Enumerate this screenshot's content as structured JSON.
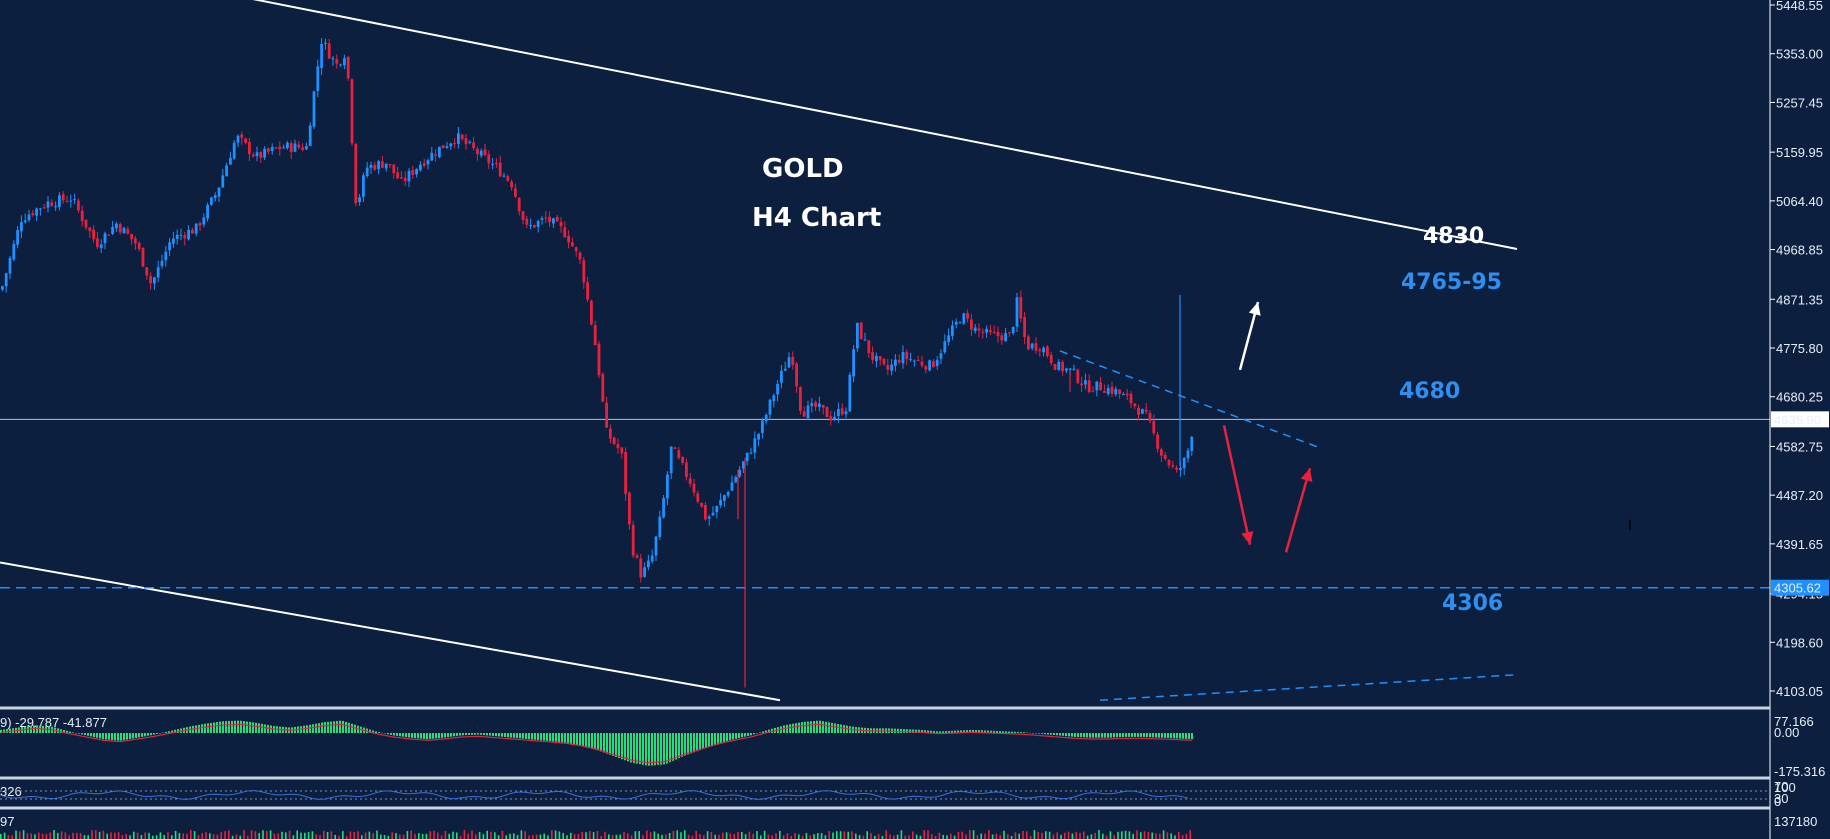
{
  "chart_data": {
    "type": "candlestick",
    "title": "GOLD",
    "subtitle": "H4 Chart",
    "colors": {
      "background": "#0c1f3f",
      "bull": "#1e90ff",
      "bear": "#e8213f",
      "channel": "#ffffff",
      "support": "#1e90ff",
      "text": "#ffffff",
      "label_blue": "#2e8ff0",
      "macd_hist": "#22e07a",
      "macd_signal": "#e8213f",
      "price_tag_bg": "#ffffff",
      "support_tag_bg": "#1e90ff"
    },
    "y_axis": {
      "ticks": [
        "5448.55",
        "5353.00",
        "5257.45",
        "5159.95",
        "5064.40",
        "4968.85",
        "4871.35",
        "4775.80",
        "4680.25",
        "4582.75",
        "4487.20",
        "4391.65",
        "4294.15",
        "4198.60",
        "4103.05"
      ],
      "range": [
        4080,
        5450
      ]
    },
    "current_price": "4635.90",
    "support_price": "4305.62",
    "annotations": {
      "level_4830": "4830",
      "level_4765_95": "4765-95",
      "level_4680": "4680",
      "level_4306": "4306"
    },
    "price_path": [
      [
        0,
        4890
      ],
      [
        20,
        5030
      ],
      [
        45,
        5060
      ],
      [
        70,
        5070
      ],
      [
        95,
        4980
      ],
      [
        115,
        5020
      ],
      [
        135,
        4980
      ],
      [
        150,
        4900
      ],
      [
        170,
        4990
      ],
      [
        195,
        5010
      ],
      [
        215,
        5080
      ],
      [
        235,
        5190
      ],
      [
        255,
        5150
      ],
      [
        280,
        5170
      ],
      [
        305,
        5170
      ],
      [
        320,
        5380
      ],
      [
        335,
        5330
      ],
      [
        345,
        5360
      ],
      [
        355,
        5050
      ],
      [
        365,
        5130
      ],
      [
        385,
        5140
      ],
      [
        400,
        5100
      ],
      [
        420,
        5140
      ],
      [
        440,
        5170
      ],
      [
        455,
        5190
      ],
      [
        475,
        5160
      ],
      [
        495,
        5130
      ],
      [
        510,
        5100
      ],
      [
        525,
        5010
      ],
      [
        545,
        5030
      ],
      [
        565,
        5000
      ],
      [
        580,
        4940
      ],
      [
        595,
        4770
      ],
      [
        605,
        4610
      ],
      [
        620,
        4570
      ],
      [
        630,
        4390
      ],
      [
        640,
        4330
      ],
      [
        650,
        4360
      ],
      [
        660,
        4450
      ],
      [
        670,
        4580
      ],
      [
        690,
        4510
      ],
      [
        705,
        4440
      ],
      [
        715,
        4460
      ],
      [
        730,
        4510
      ],
      [
        745,
        4560
      ],
      [
        760,
        4620
      ],
      [
        775,
        4700
      ],
      [
        790,
        4770
      ],
      [
        800,
        4650
      ],
      [
        815,
        4660
      ],
      [
        830,
        4640
      ],
      [
        845,
        4660
      ],
      [
        855,
        4820
      ],
      [
        870,
        4760
      ],
      [
        885,
        4730
      ],
      [
        900,
        4760
      ],
      [
        915,
        4750
      ],
      [
        930,
        4740
      ],
      [
        945,
        4790
      ],
      [
        960,
        4840
      ],
      [
        975,
        4810
      ],
      [
        990,
        4800
      ],
      [
        1010,
        4800
      ],
      [
        1015,
        4870
      ],
      [
        1025,
        4780
      ],
      [
        1040,
        4780
      ],
      [
        1055,
        4740
      ],
      [
        1070,
        4730
      ],
      [
        1085,
        4700
      ],
      [
        1100,
        4700
      ],
      [
        1115,
        4690
      ],
      [
        1130,
        4670
      ],
      [
        1145,
        4640
      ],
      [
        1160,
        4570
      ],
      [
        1175,
        4530
      ],
      [
        1185,
        4560
      ],
      [
        1193,
        4635
      ]
    ],
    "channel": {
      "upper": {
        "from": [
          220,
          5473
        ],
        "to": [
          1517,
          4970
        ]
      },
      "lower": {
        "from": [
          0,
          4355
        ],
        "to": [
          780,
          4085
        ]
      }
    },
    "trendlines": {
      "resistance": {
        "from": [
          1060,
          4770
        ],
        "to": [
          1320,
          4580
        ]
      },
      "bottom_right": {
        "from": [
          1100,
          4085
        ],
        "to": [
          1517,
          4135
        ]
      }
    },
    "arrows": [
      {
        "color": "white",
        "from": [
          1240,
          4733
        ],
        "to": [
          1258,
          4866
        ]
      },
      {
        "color": "red",
        "from": [
          1224,
          4624
        ],
        "to": [
          1250,
          4390
        ]
      },
      {
        "color": "red",
        "from": [
          1286,
          4375
        ],
        "to": [
          1310,
          4540
        ]
      }
    ],
    "macd": {
      "label": "9) -29.787 -41.877",
      "ticks": [
        "77.166",
        "0.00",
        "-175.316"
      ],
      "hist": [
        4,
        7,
        10,
        8,
        2,
        -3,
        -8,
        -10,
        -6,
        -2,
        3,
        8,
        12,
        15,
        16,
        13,
        9,
        7,
        10,
        14,
        16,
        9,
        2,
        -3,
        -6,
        -8,
        -6,
        -3,
        -2,
        -4,
        -6,
        -8,
        -10,
        -12,
        -16,
        -22,
        -30,
        -38,
        -42,
        -40,
        -30,
        -22,
        -14,
        -8,
        -3,
        4,
        10,
        14,
        16,
        12,
        8,
        6,
        6,
        5,
        4,
        2,
        3,
        4,
        3,
        2,
        1,
        -1,
        -3,
        -5,
        -6,
        -6,
        -5,
        -5,
        -6,
        -7,
        -8
      ]
    },
    "stoch": {
      "left_label": "326",
      "ticks": [
        "100",
        "70",
        "30",
        "0"
      ]
    },
    "volume": {
      "left_label": "97",
      "tick": "137180"
    }
  }
}
